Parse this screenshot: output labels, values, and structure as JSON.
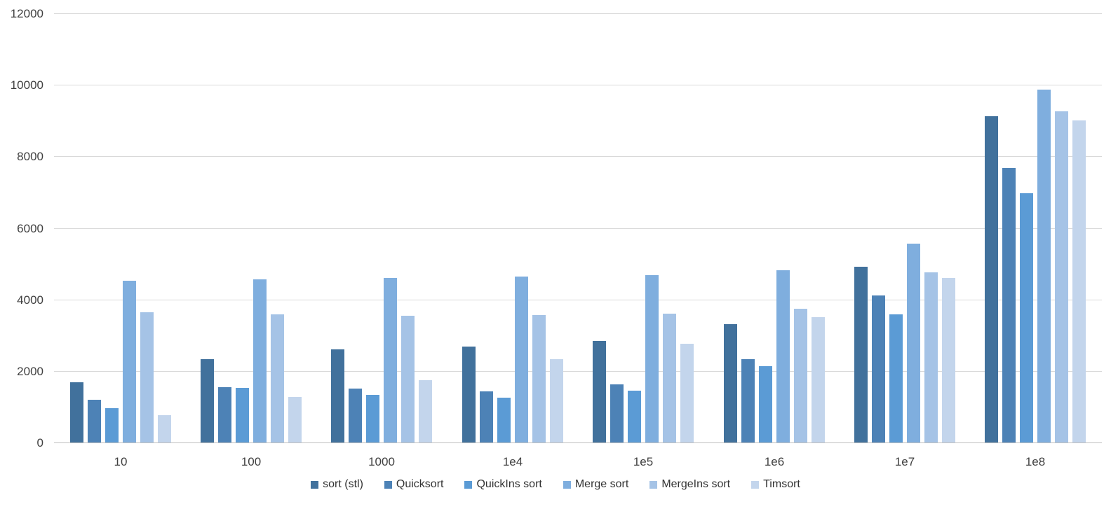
{
  "chart_data": {
    "type": "bar",
    "title": "",
    "xlabel": "",
    "ylabel": "",
    "categories": [
      "10",
      "100",
      "1000",
      "1e4",
      "1e5",
      "1e6",
      "1e7",
      "1e8"
    ],
    "series": [
      {
        "name": "sort (stl)",
        "color": "#41719C",
        "values": [
          1690,
          2330,
          2600,
          2680,
          2840,
          3300,
          4910,
          9130
        ]
      },
      {
        "name": "Quicksort",
        "color": "#4D82B6",
        "values": [
          1190,
          1550,
          1500,
          1420,
          1630,
          2330,
          4120,
          7670
        ]
      },
      {
        "name": "QuickIns sort",
        "color": "#5B9BD5",
        "values": [
          960,
          1530,
          1340,
          1260,
          1440,
          2140,
          3590,
          6960
        ]
      },
      {
        "name": "Merge sort",
        "color": "#7FAEDE",
        "values": [
          4520,
          4560,
          4600,
          4640,
          4680,
          4820,
          5550,
          9860
        ]
      },
      {
        "name": "MergeIns sort",
        "color": "#A5C3E6",
        "values": [
          3650,
          3590,
          3550,
          3570,
          3610,
          3730,
          4760,
          9250
        ]
      },
      {
        "name": "Timsort",
        "color": "#C3D5EC",
        "values": [
          760,
          1280,
          1750,
          2320,
          2760,
          3500,
          4600,
          9010
        ]
      }
    ],
    "ylim": [
      0,
      12000
    ],
    "ytick_step": 2000,
    "yticks": [
      "0",
      "2000",
      "4000",
      "6000",
      "8000",
      "10000",
      "12000"
    ],
    "grid": true,
    "legend_position": "bottom"
  },
  "styles": {
    "grid_color": "#d9d9d9",
    "axis_line_color": "#bfbfbf",
    "text_color": "#404040",
    "background": "#ffffff"
  }
}
